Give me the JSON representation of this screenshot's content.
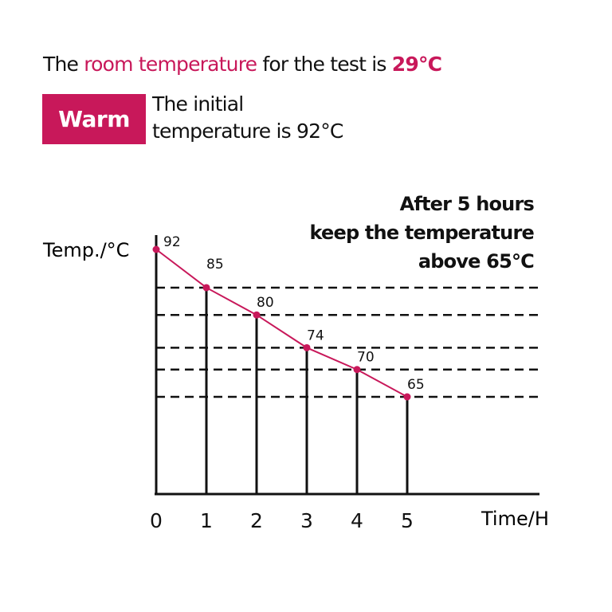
{
  "header": {
    "prefix": "The ",
    "highlight": "room temperature",
    "middle": " for the test is ",
    "room_temp": "29°C"
  },
  "badge": {
    "label": "Warm"
  },
  "initial_note": {
    "line1": "The initial",
    "line2": "temperature is 92°C"
  },
  "target_note": {
    "line1": "After 5 hours",
    "line2": "keep the temperature",
    "line3": "above 65°C"
  },
  "colors": {
    "accent": "#c8185a",
    "axis": "#111111"
  },
  "chart_data": {
    "type": "line",
    "x": [
      0,
      1,
      2,
      3,
      4,
      5
    ],
    "x_tick_labels": [
      "0",
      "1",
      "2",
      "3",
      "4",
      "5"
    ],
    "values": [
      92,
      85,
      80,
      74,
      70,
      65
    ],
    "data_labels": [
      "92",
      "85",
      "80",
      "74",
      "70",
      "65"
    ],
    "xlabel": "Time/H",
    "ylabel": "Temp./°C",
    "grid": "dashed horizontal reference lines at each value",
    "drop_lines": true
  }
}
